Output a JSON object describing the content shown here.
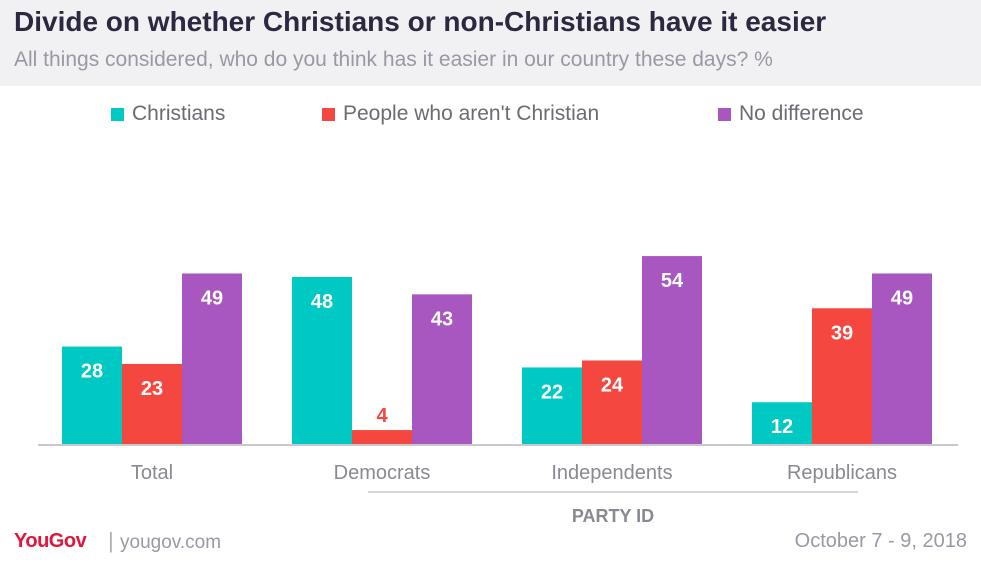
{
  "header": {
    "title": "Divide on whether Christians or non-Christians have it easier",
    "subtitle": "All things considered, who do you think has it easier in our country these days? %"
  },
  "colors": {
    "christians": "#00c8c3",
    "non_christians": "#f4473f",
    "no_difference": "#a856c0"
  },
  "chart_data": {
    "type": "bar",
    "categories": [
      "Total",
      "Democrats",
      "Independents",
      "Republicans"
    ],
    "series": [
      {
        "name": "Christians",
        "values": [
          28,
          48,
          22,
          12
        ]
      },
      {
        "name": "People who aren't Christian",
        "values": [
          23,
          4,
          24,
          39
        ]
      },
      {
        "name": "No difference",
        "values": [
          49,
          43,
          54,
          49
        ]
      }
    ],
    "group_label": "PARTY ID",
    "ylim": [
      0,
      60
    ]
  },
  "footer": {
    "logo": "YouGov",
    "separator": "|",
    "url": "yougov.com",
    "date": "October 7 - 9, 2018"
  }
}
